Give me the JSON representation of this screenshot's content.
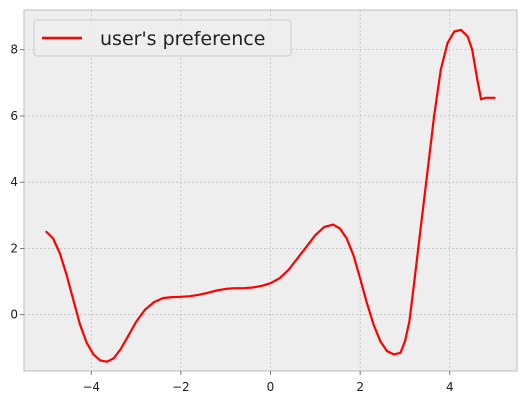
{
  "chart_data": {
    "type": "line",
    "title": "",
    "xlabel": "",
    "ylabel": "",
    "xlim": [
      -5.5,
      5.5
    ],
    "ylim": [
      -1.7,
      9.2
    ],
    "xticks": [
      -4,
      -2,
      0,
      2,
      4
    ],
    "yticks": [
      0,
      2,
      4,
      6,
      8
    ],
    "grid": true,
    "legend_position": "upper-left",
    "colors": {
      "background": "#eeeeee",
      "grid": "#b2b2b2",
      "axes": "#bcbcbc",
      "line": "#ff0000"
    },
    "series": [
      {
        "name": "user's preference",
        "color": "#ff0000",
        "x": [
          -5.0,
          -4.85,
          -4.7,
          -4.55,
          -4.4,
          -4.25,
          -4.1,
          -3.95,
          -3.8,
          -3.65,
          -3.5,
          -3.35,
          -3.2,
          -3.0,
          -2.8,
          -2.6,
          -2.4,
          -2.2,
          -2.0,
          -1.8,
          -1.6,
          -1.4,
          -1.2,
          -1.0,
          -0.8,
          -0.6,
          -0.4,
          -0.2,
          0.0,
          0.2,
          0.4,
          0.6,
          0.8,
          1.0,
          1.2,
          1.4,
          1.55,
          1.7,
          1.85,
          2.0,
          2.15,
          2.3,
          2.45,
          2.6,
          2.75,
          2.9,
          3.0,
          3.1,
          3.2,
          3.35,
          3.5,
          3.65,
          3.8,
          3.95,
          4.1,
          4.25,
          4.4,
          4.5,
          4.6,
          4.7,
          4.8,
          4.9,
          5.0
        ],
        "y": [
          2.5,
          2.3,
          1.85,
          1.2,
          0.45,
          -0.3,
          -0.85,
          -1.2,
          -1.38,
          -1.42,
          -1.32,
          -1.05,
          -0.7,
          -0.22,
          0.15,
          0.38,
          0.5,
          0.53,
          0.54,
          0.56,
          0.6,
          0.66,
          0.73,
          0.78,
          0.8,
          0.8,
          0.82,
          0.87,
          0.95,
          1.1,
          1.35,
          1.7,
          2.05,
          2.4,
          2.65,
          2.72,
          2.6,
          2.3,
          1.8,
          1.1,
          0.35,
          -0.3,
          -0.8,
          -1.1,
          -1.2,
          -1.15,
          -0.8,
          -0.2,
          0.9,
          2.6,
          4.3,
          6.0,
          7.4,
          8.2,
          8.55,
          8.6,
          8.4,
          8.0,
          7.2,
          6.5,
          6.55,
          6.55,
          6.55
        ]
      }
    ]
  }
}
